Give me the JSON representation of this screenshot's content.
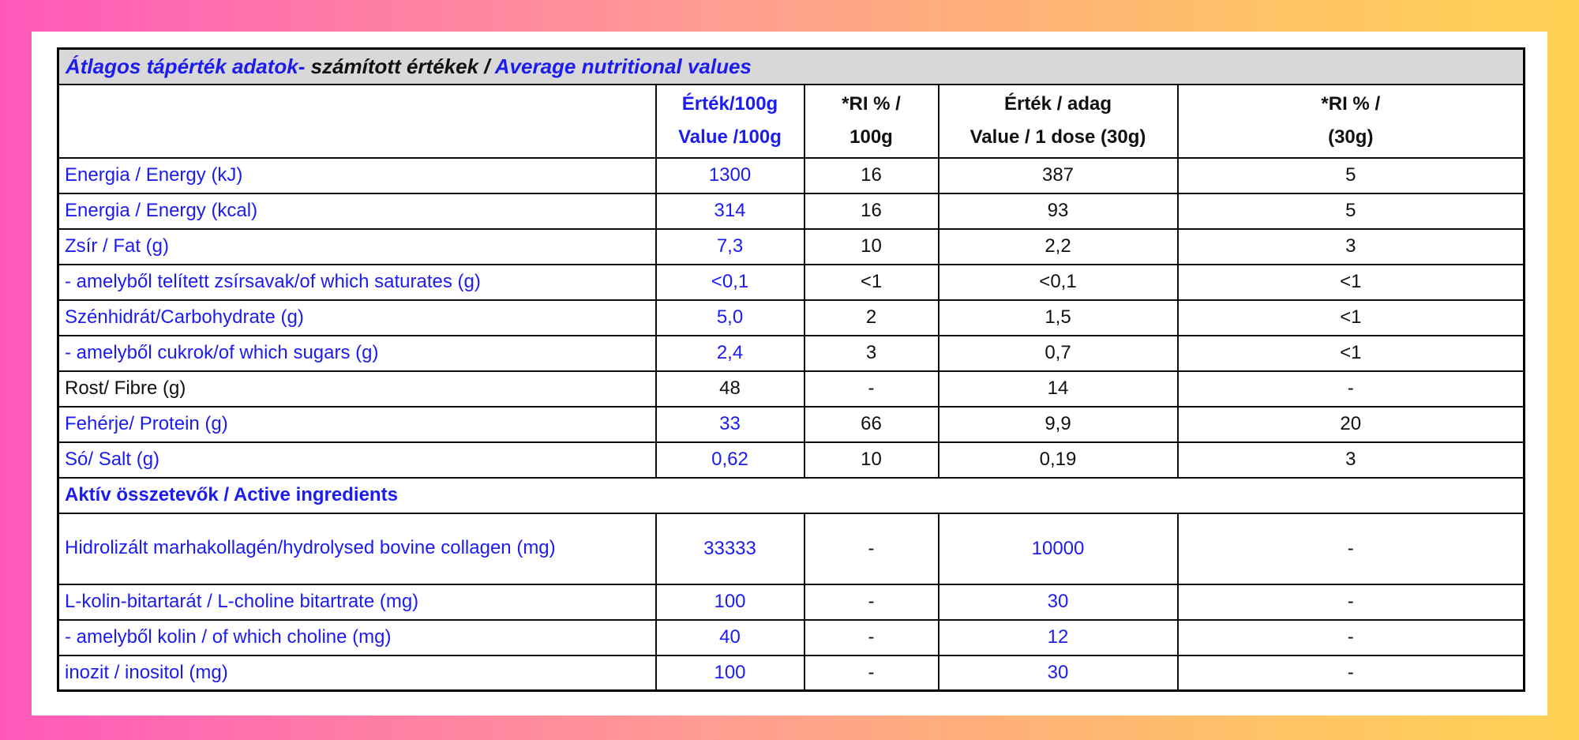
{
  "colors": {
    "blue": "#1c1cf0",
    "black": "#111111",
    "title_bg": "#d8d8d8",
    "border": "#000000",
    "panel_bg": "#ffffff",
    "bg_gradient_left": "#ff58bb",
    "bg_gradient_mid": "#ffaf7a",
    "bg_gradient_right": "#ffd254"
  },
  "table": {
    "title": {
      "part1_hu": "Átlagos tápérték adatok-",
      "part2_mid": " számított értékek / ",
      "part3_en": "Average nutritional values"
    },
    "columns": [
      {
        "line1": "",
        "line2": "",
        "color": "black"
      },
      {
        "line1": "Érték/100g",
        "line2": "Value /100g",
        "color": "blue"
      },
      {
        "line1": "*RI % /",
        "line2": "100g",
        "color": "black"
      },
      {
        "line1": "Érték / adag",
        "line2": "Value / 1 dose (30g)",
        "color": "black"
      },
      {
        "line1": "*RI % /",
        "line2": "(30g)",
        "color": "black"
      }
    ],
    "rows": [
      {
        "type": "data",
        "label": "Energia / Energy  (kJ)",
        "label_color": "blue",
        "cells": [
          {
            "t": "1300",
            "c": "blue"
          },
          {
            "t": "16",
            "c": "black"
          },
          {
            "t": "387",
            "c": "black"
          },
          {
            "t": "5",
            "c": "black"
          }
        ]
      },
      {
        "type": "data",
        "label": "Energia / Energy  (kcal)",
        "label_color": "blue",
        "cells": [
          {
            "t": "314",
            "c": "blue"
          },
          {
            "t": "16",
            "c": "black"
          },
          {
            "t": "93",
            "c": "black"
          },
          {
            "t": "5",
            "c": "black"
          }
        ]
      },
      {
        "type": "data",
        "label": "Zsír / Fat (g)",
        "label_color": "blue",
        "cells": [
          {
            "t": "7,3",
            "c": "blue"
          },
          {
            "t": "10",
            "c": "black"
          },
          {
            "t": "2,2",
            "c": "black"
          },
          {
            "t": "3",
            "c": "black"
          }
        ]
      },
      {
        "type": "data",
        "label": "- amelyből telített zsírsavak/of which saturates (g)",
        "label_color": "blue",
        "cells": [
          {
            "t": "<0,1",
            "c": "blue"
          },
          {
            "t": "<1",
            "c": "black"
          },
          {
            "t": "<0,1",
            "c": "black"
          },
          {
            "t": "<1",
            "c": "black"
          }
        ]
      },
      {
        "type": "data",
        "label": "Szénhidrát/Carbohydrate (g)",
        "label_color": "blue",
        "cells": [
          {
            "t": "5,0",
            "c": "blue"
          },
          {
            "t": "2",
            "c": "black"
          },
          {
            "t": "1,5",
            "c": "black"
          },
          {
            "t": "<1",
            "c": "black"
          }
        ]
      },
      {
        "type": "data",
        "label": "- amelyből cukrok/of which sugars (g)",
        "label_color": "blue",
        "cells": [
          {
            "t": "2,4",
            "c": "blue"
          },
          {
            "t": "3",
            "c": "black"
          },
          {
            "t": "0,7",
            "c": "black"
          },
          {
            "t": "<1",
            "c": "black"
          }
        ]
      },
      {
        "type": "data",
        "label": "Rost/ Fibre (g)",
        "label_color": "black",
        "cells": [
          {
            "t": "48",
            "c": "black"
          },
          {
            "t": "-",
            "c": "black"
          },
          {
            "t": "14",
            "c": "black"
          },
          {
            "t": "-",
            "c": "black"
          }
        ]
      },
      {
        "type": "data",
        "label": "Fehérje/ Protein (g)",
        "label_color": "blue",
        "cells": [
          {
            "t": "33",
            "c": "blue"
          },
          {
            "t": "66",
            "c": "black"
          },
          {
            "t": "9,9",
            "c": "black"
          },
          {
            "t": "20",
            "c": "black"
          }
        ]
      },
      {
        "type": "data",
        "label": "Só/ Salt (g)",
        "label_color": "blue",
        "cells": [
          {
            "t": "0,62",
            "c": "blue"
          },
          {
            "t": "10",
            "c": "black"
          },
          {
            "t": "0,19",
            "c": "black"
          },
          {
            "t": "3",
            "c": "black"
          }
        ]
      },
      {
        "type": "section",
        "label": "Aktív összetevők / Active ingredients",
        "label_color": "blue"
      },
      {
        "type": "data",
        "tall": true,
        "label": "Hidrolizált marhakollagén/hydrolysed bovine collagen (mg)",
        "label_color": "blue",
        "cells": [
          {
            "t": "33333",
            "c": "blue"
          },
          {
            "t": "-",
            "c": "black"
          },
          {
            "t": "10000",
            "c": "blue"
          },
          {
            "t": "-",
            "c": "black"
          }
        ]
      },
      {
        "type": "data",
        "label": "L-kolin-bitartarát / L-choline bitartrate (mg)",
        "label_color": "blue",
        "cells": [
          {
            "t": "100",
            "c": "blue"
          },
          {
            "t": "-",
            "c": "black"
          },
          {
            "t": "30",
            "c": "blue"
          },
          {
            "t": "-",
            "c": "black"
          }
        ]
      },
      {
        "type": "data",
        "label": "- amelyből kolin / of which choline (mg)",
        "label_color": "blue",
        "cells": [
          {
            "t": "40",
            "c": "blue"
          },
          {
            "t": "-",
            "c": "black"
          },
          {
            "t": "12",
            "c": "blue"
          },
          {
            "t": "-",
            "c": "black"
          }
        ]
      },
      {
        "type": "data",
        "label": "inozit / inositol (mg)",
        "label_color": "blue",
        "cells": [
          {
            "t": "100",
            "c": "blue"
          },
          {
            "t": "-",
            "c": "black"
          },
          {
            "t": "30",
            "c": "blue"
          },
          {
            "t": "-",
            "c": "black"
          }
        ]
      }
    ]
  }
}
